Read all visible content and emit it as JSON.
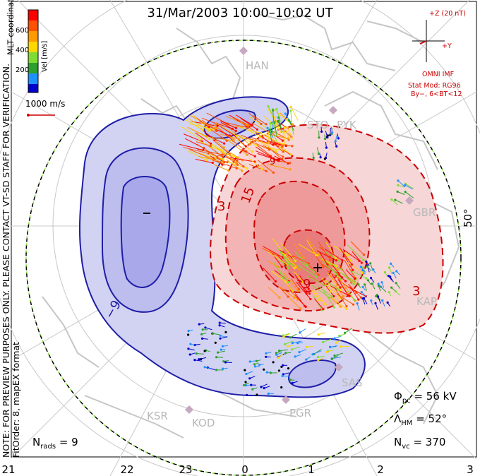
{
  "title": "31/Mar/2003 10:00–10:02 UT",
  "note_line1": "NOTE: FOR PREVIEW PURPOSES ONLY. PLEASE CONTACT VT-SD STAFF FOR VERIFICATION.",
  "note_line2": "FitOrder: 8, mapEX format",
  "coords_label": "MLT coordinates",
  "colorbar": {
    "title": "Vel [m/s]",
    "ticks": [
      "600",
      "400",
      "200"
    ],
    "colors": [
      "#ff0000",
      "#ff7f00",
      "#ffd700",
      "#7fdc32",
      "#2ca02c",
      "#1e90ff",
      "#0000cc"
    ]
  },
  "scale_vector_label": "1000 m/s",
  "imf": {
    "z_label": "+Z (20 nT)",
    "y_label": "+Y",
    "source": "OMNI IMF",
    "model_line1": "Stat Mod: RG96",
    "model_line2": "By−, 6<BT<12"
  },
  "sites": [
    "HAN",
    "STO",
    "PYK",
    "GBR",
    "KAP",
    "SAS",
    "PGR",
    "KOD",
    "KSR"
  ],
  "lat_label": "50°",
  "contour_labels": [
    "3",
    "15",
    "3",
    "9",
    "−9",
    "9"
  ],
  "potential_markers": {
    "min": "−",
    "max": "+"
  },
  "stats": {
    "phi_pc_symbol": "Φ",
    "phi_pc_sub": "pc",
    "phi_pc_value": "= 56 kV",
    "lambda_hm_symbol": "Λ",
    "lambda_hm_sub": "HM",
    "lambda_hm_value": "= 52°",
    "n_vc_symbol": "N",
    "n_vc_sub": "vc",
    "n_vc_value": "= 370",
    "n_rads_symbol": "N",
    "n_rads_sub": "rads",
    "n_rads_value": "= 9"
  },
  "mlt_ticks": [
    "21",
    "22",
    "23",
    "0",
    "1",
    "2",
    "3"
  ],
  "colors": {
    "negative_contour": "#1e1ea8",
    "positive_contour": "#cc0000",
    "negative_fill": "#c8c8f0",
    "positive_fill": "#f2a8a8",
    "land": "#c6c6c6"
  }
}
